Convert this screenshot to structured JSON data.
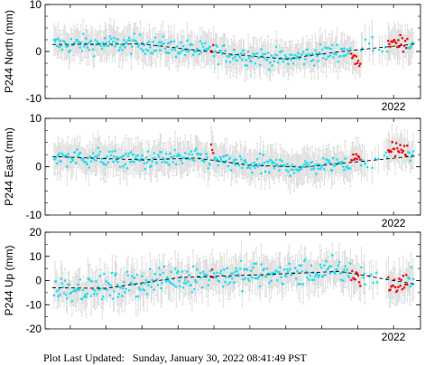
{
  "footer": {
    "label": "Plot Last Updated:",
    "value": "Sunday, January 30, 2022 08:41:49 PST"
  },
  "colors": {
    "points": "#22ddee",
    "recent_points": "#ee1111",
    "error_bars": "#cccccc",
    "trend": "#000000"
  },
  "chart_data": [
    {
      "type": "scatter",
      "ylabel": "P244 North (mm)",
      "ylim": [
        -10,
        10
      ],
      "yticks": [
        -10,
        0,
        10
      ],
      "xlim": [
        2012.3,
        2022.75
      ],
      "xticks": [
        {
          "value": 2022.0,
          "label": "2022"
        }
      ],
      "error_mm": 3.0,
      "trend": {
        "type": "line",
        "style": "dashed",
        "x": [
          2012.5,
          2015.0,
          2017.5,
          2019.0,
          2020.3,
          2022.6
        ],
        "y": [
          1.5,
          1.6,
          -0.6,
          -1.6,
          -0.2,
          1.6
        ]
      },
      "noise_mm": 1.4,
      "red_segments": [
        [
          2016.9,
          2017.0,
          0.3
        ],
        [
          2020.8,
          2021.1,
          -2.0
        ],
        [
          2021.85,
          2022.4,
          1.6
        ]
      ]
    },
    {
      "type": "scatter",
      "ylabel": "P244 East (mm)",
      "ylim": [
        -10,
        10
      ],
      "yticks": [
        -10,
        0,
        10
      ],
      "xlim": [
        2012.3,
        2022.75
      ],
      "xticks": [
        {
          "value": 2022.0,
          "label": "2022"
        }
      ],
      "error_mm": 3.0,
      "trend": {
        "type": "line",
        "style": "dashed",
        "x": [
          2012.5,
          2015.0,
          2016.5,
          2018.0,
          2019.5,
          2022.6
        ],
        "y": [
          2.1,
          1.4,
          1.8,
          0.3,
          -0.1,
          2.2
        ]
      },
      "noise_mm": 1.3,
      "red_segments": [
        [
          2016.9,
          2017.0,
          3.2
        ],
        [
          2020.8,
          2021.1,
          1.8
        ],
        [
          2021.85,
          2022.4,
          3.5
        ]
      ]
    },
    {
      "type": "scatter",
      "ylabel": "P244 Up (mm)",
      "ylim": [
        -20,
        20
      ],
      "yticks": [
        -20,
        -10,
        0,
        10,
        20
      ],
      "xlim": [
        2012.3,
        2022.75
      ],
      "xticks": [
        {
          "value": 2022.0,
          "label": "2022"
        }
      ],
      "error_mm": 6.5,
      "trend": {
        "type": "line",
        "style": "dashed",
        "x": [
          2012.5,
          2014.0,
          2016.0,
          2018.5,
          2020.5,
          2022.6
        ],
        "y": [
          -3.0,
          -3.2,
          1.2,
          2.5,
          3.8,
          -1.5
        ]
      },
      "noise_mm": 3.8,
      "red_segments": [
        [
          2016.9,
          2017.0,
          2.5
        ],
        [
          2020.8,
          2021.1,
          2.0
        ],
        [
          2021.85,
          2022.4,
          -2.0
        ]
      ]
    }
  ]
}
